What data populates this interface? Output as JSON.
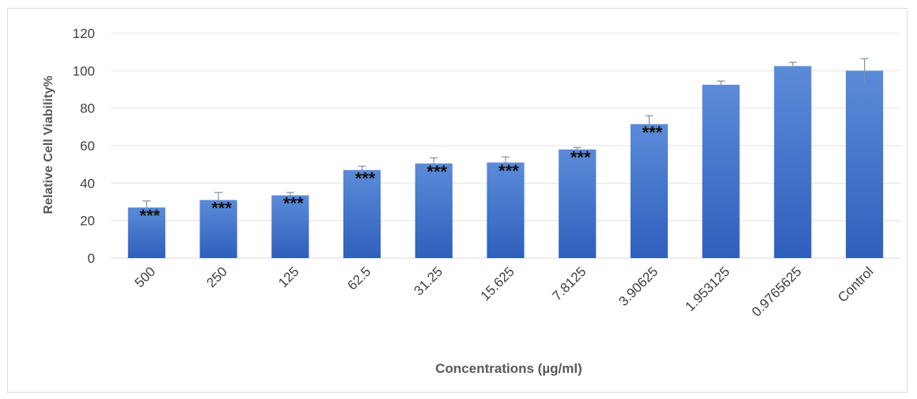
{
  "chart_data": {
    "type": "bar",
    "title": "",
    "xlabel": "Concentrations (µg/ml)",
    "ylabel": "Relative Cell Viability%",
    "ylim": [
      0,
      120
    ],
    "yticks": [
      0,
      20,
      40,
      60,
      80,
      100,
      120
    ],
    "grid": true,
    "legend": "none",
    "bar_color": "#4472c4",
    "categories": [
      "500",
      "250",
      "125",
      "62.5",
      "31.25",
      "15.625",
      "7.8125",
      "3.90625",
      "1.953125",
      "0.9765625",
      "Control"
    ],
    "values": [
      27,
      31,
      33.5,
      47,
      50.5,
      51,
      58,
      71.5,
      92.5,
      102.5,
      100
    ],
    "errors": [
      3.5,
      4,
      1.5,
      2,
      3,
      3,
      1,
      4.5,
      2,
      2,
      6.5
    ],
    "annotations": [
      "***",
      "***",
      "***",
      "***",
      "***",
      "***",
      "***",
      "***",
      "",
      "",
      ""
    ]
  }
}
